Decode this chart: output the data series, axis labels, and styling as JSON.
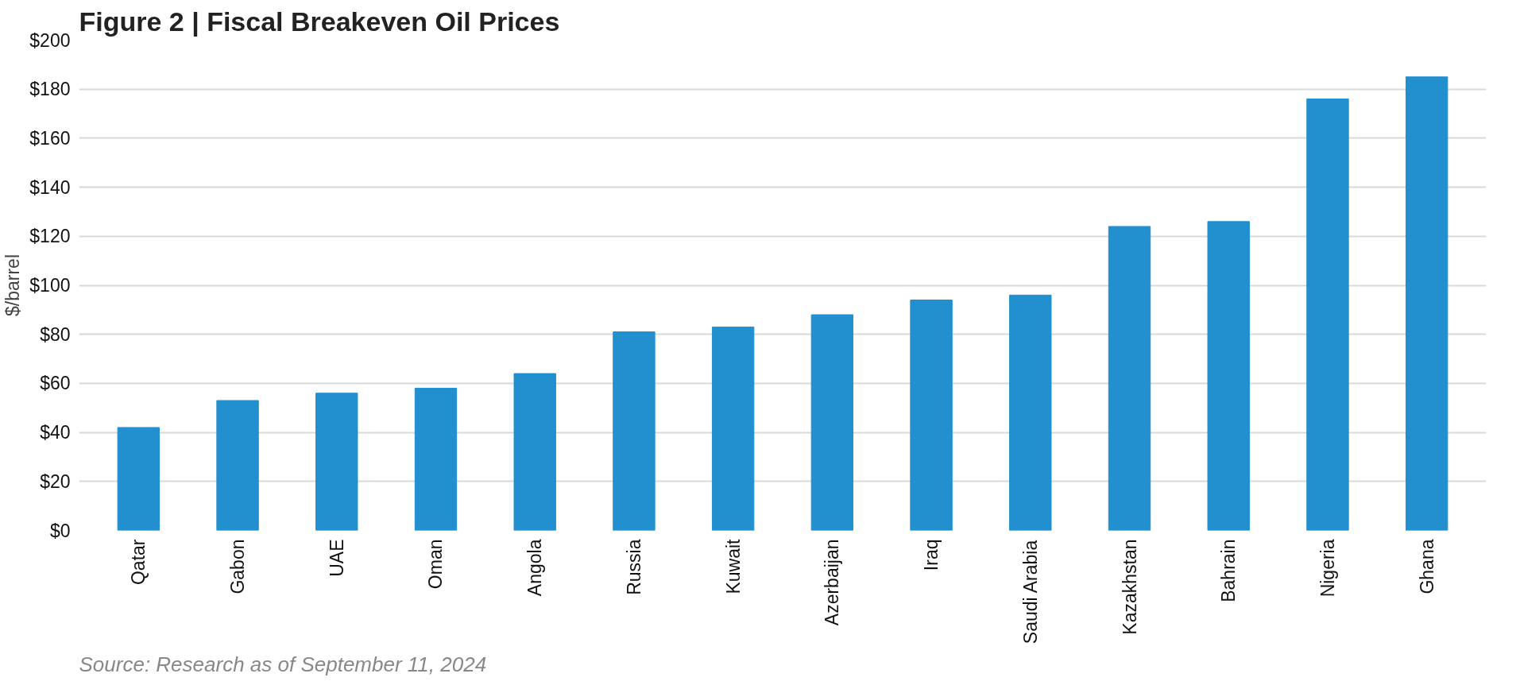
{
  "chart_data": {
    "type": "bar",
    "title": "Figure 2  |  Fiscal Breakeven Oil Prices",
    "ylabel": "$/barrel",
    "categories": [
      "Qatar",
      "Gabon",
      "UAE",
      "Oman",
      "Angola",
      "Russia",
      "Kuwait",
      "Azerbaijan",
      "Iraq",
      "Saudi Arabia",
      "Kazakhstan",
      "Bahrain",
      "Nigeria",
      "Ghana"
    ],
    "values": [
      42,
      53,
      56,
      58,
      64,
      81,
      83,
      88,
      94,
      96,
      124,
      126,
      176,
      185
    ],
    "color": "#228fcf",
    "ylim": [
      0,
      200
    ],
    "yticks": [
      {
        "value": 0,
        "label": "$0"
      },
      {
        "value": 20,
        "label": "$20"
      },
      {
        "value": 40,
        "label": "$40"
      },
      {
        "value": 60,
        "label": "$60"
      },
      {
        "value": 80,
        "label": "$80"
      },
      {
        "value": 100,
        "label": "$100"
      },
      {
        "value": 120,
        "label": "$120"
      },
      {
        "value": 140,
        "label": "$140"
      },
      {
        "value": 160,
        "label": "$160"
      },
      {
        "value": 180,
        "label": "$180"
      },
      {
        "value": 200,
        "label": "$200"
      }
    ],
    "grid": "y",
    "annotations": [
      "Source: Research as of September 11, 2024"
    ]
  }
}
